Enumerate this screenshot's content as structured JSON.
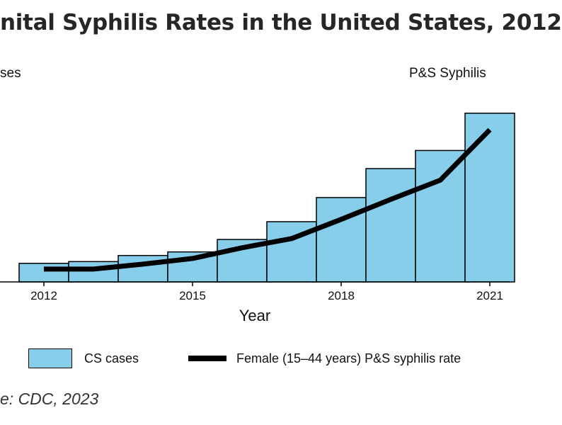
{
  "chart_data": {
    "type": "bar",
    "title": "nital Syphilis Rates in the United States, 2012",
    "xlabel": "Year",
    "ylabel_left": "ses",
    "ylabel_right": "P&S Syphilis",
    "source": "e: CDC, 2023",
    "years": [
      2012,
      2013,
      2014,
      2015,
      2016,
      2017,
      2018,
      2019,
      2020,
      2021
    ],
    "x_tick_labels": [
      "2012",
      "2015",
      "2018",
      "2021"
    ],
    "series": [
      {
        "name": "CS cases",
        "kind": "bar",
        "color": "#87ceeb",
        "values": [
          338,
          370,
          481,
          546,
          772,
          1096,
          1535,
          2062,
          2392,
          3070
        ]
      },
      {
        "name": "Female (15–44 years) P&S syphilis rate",
        "kind": "line",
        "color": "#000000",
        "values": [
          1.8,
          1.8,
          2.5,
          3.3,
          4.8,
          6.1,
          8.8,
          11.6,
          14.3,
          21.4
        ]
      }
    ],
    "left_ylim": [
      0,
      3300
    ],
    "right_ylim": [
      0,
      25.5
    ],
    "grid": false,
    "legend_position": "bottom"
  },
  "legend": {
    "bars_label": "CS cases",
    "line_label": "Female (15–44 years) P&S syphilis rate"
  }
}
